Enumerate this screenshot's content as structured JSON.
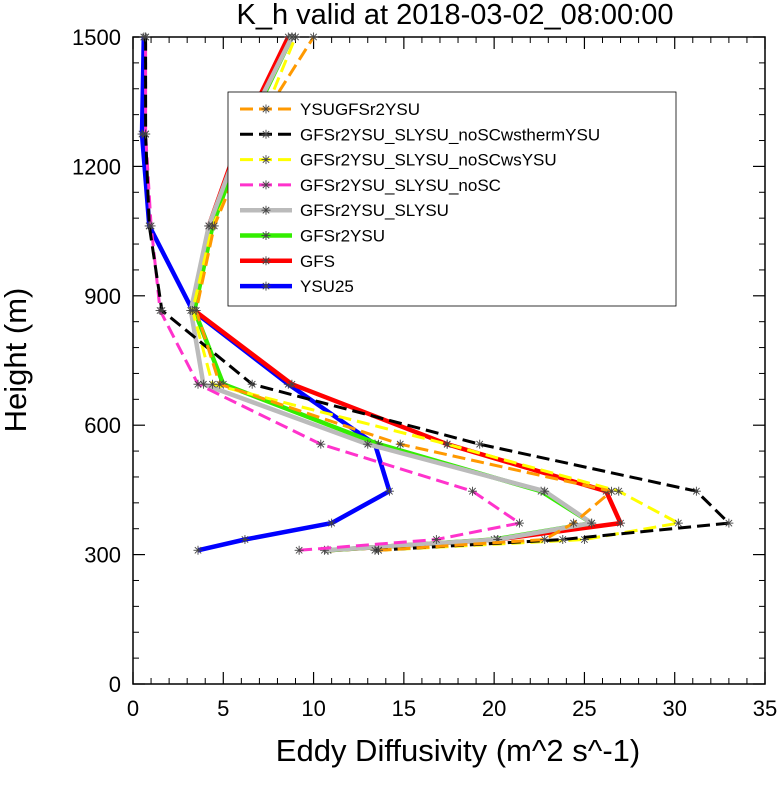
{
  "chart_data": {
    "type": "line",
    "title": "K_h valid at 2018-03-02_08:00:00",
    "xlabel": "Eddy Diffusivity (m^2 s^-1)",
    "ylabel": "Height (m)",
    "xlim": [
      0,
      35
    ],
    "ylim": [
      0,
      1500
    ],
    "xticks": [
      0,
      5,
      10,
      15,
      20,
      25,
      30,
      35
    ],
    "yticks": [
      0,
      300,
      600,
      900,
      1200,
      1500
    ],
    "grid": false,
    "legend_position": "upper-center",
    "series": [
      {
        "name": "YSUGFSr2YSU",
        "color": "#ff9900",
        "dash": "dashed",
        "points": [
          [
            13.6,
            310
          ],
          [
            22.8,
            335
          ],
          [
            24.4,
            373
          ],
          [
            26.5,
            447
          ],
          [
            14.8,
            556
          ],
          [
            4.8,
            695
          ],
          [
            3.5,
            866
          ],
          [
            4.5,
            1062
          ],
          [
            6.6,
            1275
          ],
          [
            10.0,
            1500
          ]
        ]
      },
      {
        "name": "GFSr2YSU_SLYSU_noSCwsthermYSU",
        "color": "#000000",
        "dash": "dashed",
        "points": [
          [
            13.4,
            310
          ],
          [
            23.8,
            335
          ],
          [
            33.0,
            373
          ],
          [
            31.2,
            447
          ],
          [
            19.2,
            556
          ],
          [
            6.6,
            695
          ],
          [
            1.6,
            866
          ],
          [
            0.9,
            1062
          ],
          [
            0.7,
            1275
          ],
          [
            0.7,
            1500
          ]
        ]
      },
      {
        "name": "GFSr2YSU_SLYSU_noSCwsYSU",
        "color": "#ffff00",
        "dash": "dashed",
        "points": [
          [
            13.6,
            310
          ],
          [
            25.0,
            335
          ],
          [
            30.2,
            373
          ],
          [
            26.9,
            447
          ],
          [
            17.4,
            556
          ],
          [
            4.4,
            695
          ],
          [
            3.3,
            866
          ],
          [
            4.4,
            1062
          ],
          [
            6.8,
            1275
          ],
          [
            9.0,
            1500
          ]
        ]
      },
      {
        "name": "GFSr2YSU_SLYSU_noSC",
        "color": "#ff33cc",
        "dash": "dashed",
        "points": [
          [
            9.2,
            310
          ],
          [
            16.8,
            335
          ],
          [
            21.4,
            373
          ],
          [
            18.8,
            447
          ],
          [
            10.4,
            556
          ],
          [
            3.6,
            695
          ],
          [
            1.5,
            866
          ],
          [
            1.0,
            1062
          ],
          [
            0.7,
            1275
          ],
          [
            0.7,
            1500
          ]
        ]
      },
      {
        "name": "GFSr2YSU_SLYSU",
        "color": "#bbbbbb",
        "dash": "solid",
        "points": [
          [
            10.6,
            310
          ],
          [
            20.2,
            335
          ],
          [
            25.4,
            373
          ],
          [
            22.8,
            447
          ],
          [
            13.0,
            556
          ],
          [
            3.9,
            695
          ],
          [
            3.2,
            866
          ],
          [
            4.2,
            1062
          ],
          [
            6.1,
            1275
          ],
          [
            8.8,
            1500
          ]
        ]
      },
      {
        "name": "GFSr2YSU",
        "color": "#33ee00",
        "dash": "solid",
        "points": [
          [
            10.8,
            310
          ],
          [
            20.0,
            335
          ],
          [
            25.4,
            373
          ],
          [
            22.6,
            447
          ],
          [
            13.6,
            556
          ],
          [
            5.0,
            695
          ],
          [
            3.4,
            866
          ],
          [
            4.4,
            1062
          ],
          [
            6.2,
            1275
          ],
          [
            8.8,
            1500
          ]
        ]
      },
      {
        "name": "GFS",
        "color": "#ff0000",
        "dash": "solid",
        "points": [
          [
            10.8,
            310
          ],
          [
            20.2,
            335
          ],
          [
            27.0,
            373
          ],
          [
            26.2,
            447
          ],
          [
            17.4,
            556
          ],
          [
            8.8,
            695
          ],
          [
            3.4,
            866
          ],
          [
            4.2,
            1062
          ],
          [
            6.0,
            1275
          ],
          [
            8.6,
            1500
          ]
        ]
      },
      {
        "name": "YSU25",
        "color": "#0000ff",
        "dash": "solid",
        "points": [
          [
            3.6,
            310
          ],
          [
            6.2,
            335
          ],
          [
            11.0,
            373
          ],
          [
            14.2,
            447
          ],
          [
            13.4,
            556
          ],
          [
            8.6,
            695
          ],
          [
            3.3,
            866
          ],
          [
            0.9,
            1062
          ],
          [
            0.5,
            1275
          ],
          [
            0.6,
            1500
          ]
        ]
      }
    ]
  }
}
